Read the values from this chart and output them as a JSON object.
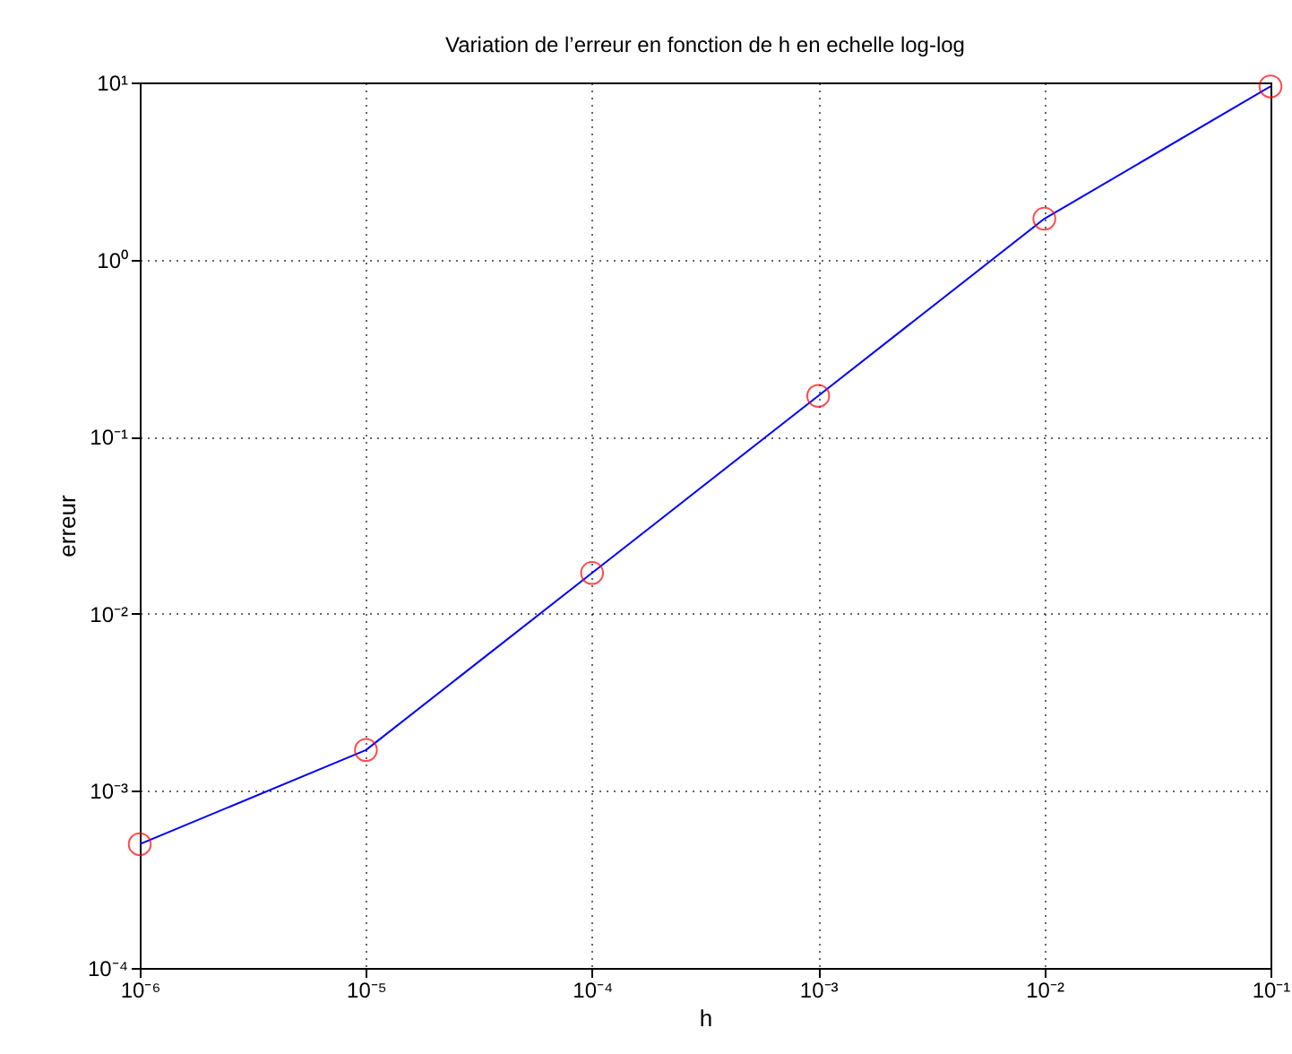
{
  "chart_data": {
    "type": "line",
    "title": "Variation de l’erreur en fonction de h en echelle log-log",
    "xlabel": "h",
    "ylabel": "erreur",
    "x": [
      1e-06,
      1e-05,
      0.0001,
      0.001,
      0.01,
      0.1
    ],
    "series": [
      {
        "color": "#0000ff",
        "colors": [
          "#ff0000",
          "#ff0000",
          "#ff0000",
          "#ff0000",
          "#ff0000",
          "#ff0000"
        ],
        "values": [
          0.0005,
          0.0017,
          0.017,
          0.17,
          1.7,
          9.5
        ]
      }
    ],
    "log": "xy",
    "grid": true,
    "marker": "circle",
    "line_style": "solid",
    "xlim": [
      1e-06,
      0.1
    ],
    "xticks": [
      {
        "value": 1e-06,
        "label": "10⁻⁶"
      },
      {
        "value": 1e-05,
        "label": "10⁻⁵"
      },
      {
        "value": 0.0001,
        "label": "10⁻⁴"
      },
      {
        "value": 0.001,
        "label": "10⁻³"
      },
      {
        "value": 0.01,
        "label": "10⁻²"
      },
      {
        "value": 0.1,
        "label": "10⁻¹"
      }
    ],
    "ylim": [
      0.0001,
      10
    ],
    "yticks": [
      {
        "value": 0.0001,
        "label": "10⁻⁴"
      },
      {
        "value": 0.001,
        "label": "10⁻³"
      },
      {
        "value": 0.01,
        "label": "10⁻²"
      },
      {
        "value": 0.1,
        "label": "10⁻¹"
      },
      {
        "value": 1,
        "label": "10⁰"
      },
      {
        "value": 10,
        "label": "10¹"
      }
    ]
  }
}
